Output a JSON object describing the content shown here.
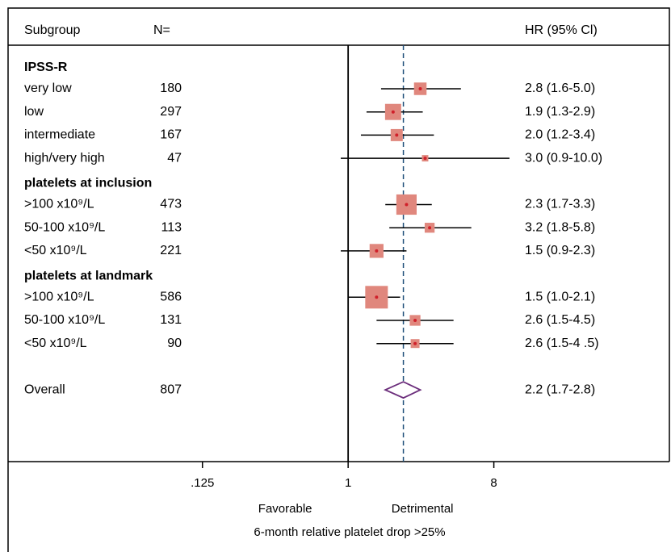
{
  "chart_data": {
    "type": "forest",
    "header": {
      "subgroup": "Subgroup",
      "n": "N=",
      "hr": "HR (95% Cl)"
    },
    "groups": [
      {
        "title": "IPSS-R",
        "rows": [
          {
            "label": "very low",
            "n": 180,
            "hr": 2.8,
            "lo": 1.6,
            "hi": 5.0,
            "text": "2.8 (1.6-5.0)"
          },
          {
            "label": "low",
            "n": 297,
            "hr": 1.9,
            "lo": 1.3,
            "hi": 2.9,
            "text": "1.9 (1.3-2.9)"
          },
          {
            "label": "intermediate",
            "n": 167,
            "hr": 2.0,
            "lo": 1.2,
            "hi": 3.4,
            "text": "2.0 (1.2-3.4)"
          },
          {
            "label": "high/very high",
            "n": 47,
            "hr": 3.0,
            "lo": 0.9,
            "hi": 10.0,
            "text": "3.0 (0.9-10.0)"
          }
        ]
      },
      {
        "title": "platelets at inclusion",
        "rows": [
          {
            "label": ">100 x10⁹/L",
            "n": 473,
            "hr": 2.3,
            "lo": 1.7,
            "hi": 3.3,
            "text": "2.3 (1.7-3.3)"
          },
          {
            "label": "50-100 x10⁹/L",
            "n": 113,
            "hr": 3.2,
            "lo": 1.8,
            "hi": 5.8,
            "text": "3.2 (1.8-5.8)"
          },
          {
            "label": "<50 x10⁹/L",
            "n": 221,
            "hr": 1.5,
            "lo": 0.9,
            "hi": 2.3,
            "text": "1.5 (0.9-2.3)"
          }
        ]
      },
      {
        "title": "platelets at landmark",
        "rows": [
          {
            "label": ">100 x10⁹/L",
            "n": 586,
            "hr": 1.5,
            "lo": 1.0,
            "hi": 2.1,
            "text": "1.5 (1.0-2.1)"
          },
          {
            "label": "50-100 x10⁹/L",
            "n": 131,
            "hr": 2.6,
            "lo": 1.5,
            "hi": 4.5,
            "text": "2.6 (1.5-4.5)"
          },
          {
            "label": "<50 x10⁹/L",
            "n": 90,
            "hr": 2.6,
            "lo": 1.5,
            "hi": 4.5,
            "text": "2.6 (1.5-4 .5)"
          }
        ]
      }
    ],
    "overall": {
      "label": "Overall",
      "n": 807,
      "hr": 2.2,
      "lo": 1.7,
      "hi": 2.8,
      "text": "2.2 (1.7-2.8)"
    },
    "log_scale": true,
    "reference": 1,
    "xlim": [
      0.0078,
      98
    ],
    "xticks": [
      {
        "value": 0.125,
        "label": ".125"
      },
      1,
      8
    ],
    "favorable": "Favorable",
    "detrimental": "Detrimental",
    "xlabel": "6-month relative platelet drop >25%",
    "box_color": "#e0877d",
    "dot_color": "#d0202a",
    "diamond_color": "#6b2d7b",
    "line_color": "#000000",
    "ref_line_color": "#1f4e79"
  }
}
